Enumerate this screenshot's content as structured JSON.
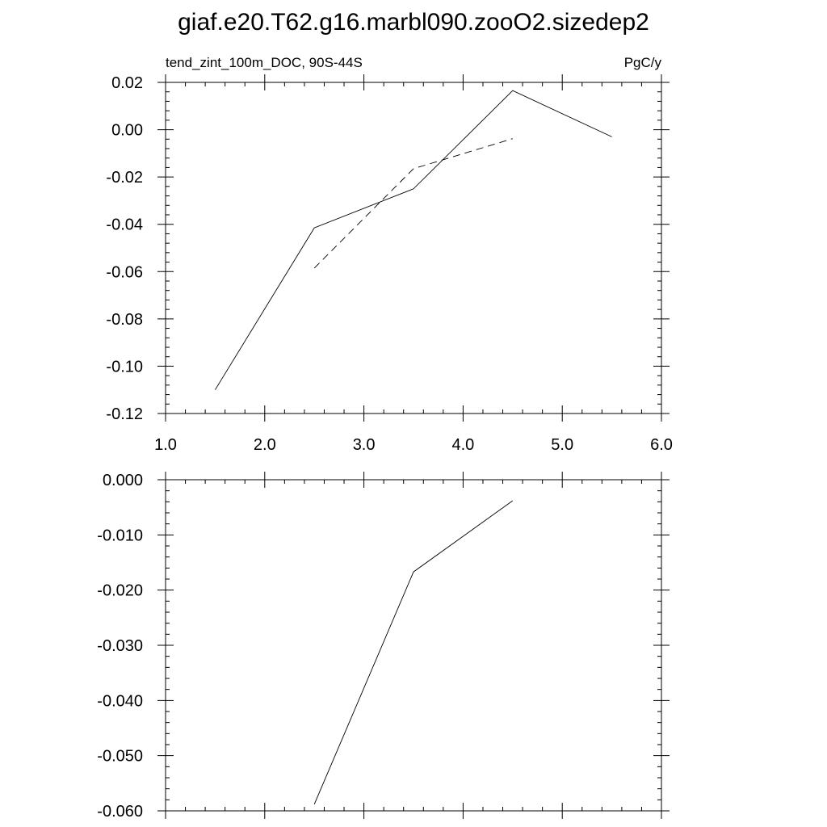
{
  "figure": {
    "title": "giaf.e20.T62.g16.marbl090.zooO2.sizedep2"
  },
  "chart_data": [
    {
      "type": "line",
      "panel": "top",
      "left_label": "tend_zint_100m_DOC, 90S-44S",
      "right_label": "PgC/y",
      "xlim": [
        1.0,
        6.0
      ],
      "ylim": [
        -0.12,
        0.02
      ],
      "x_major_ticks": [
        1.0,
        2.0,
        3.0,
        4.0,
        5.0,
        6.0
      ],
      "x_tick_labels": [
        "1.0",
        "2.0",
        "3.0",
        "4.0",
        "5.0",
        "6.0"
      ],
      "x_minor_step": 0.2,
      "y_major_ticks": [
        0.02,
        0.0,
        -0.02,
        -0.04,
        -0.06,
        -0.08,
        -0.1,
        -0.12
      ],
      "y_tick_labels": [
        "0.02",
        "0.00",
        "-0.02",
        "-0.04",
        "-0.06",
        "-0.08",
        "-0.10",
        "-0.12"
      ],
      "y_minor_step": 0.004,
      "grid": false,
      "series": [
        {
          "style": "solid",
          "color": "#000000",
          "x": [
            1.5,
            2.5,
            3.5,
            4.5,
            5.5
          ],
          "y": [
            -0.11,
            -0.0415,
            -0.025,
            0.0165,
            -0.003
          ]
        },
        {
          "style": "dashed",
          "color": "#000000",
          "x": [
            2.5,
            3.5,
            4.5
          ],
          "y": [
            -0.0585,
            -0.0165,
            -0.0038
          ]
        }
      ]
    },
    {
      "type": "line",
      "panel": "bottom",
      "xlim": [
        1.0,
        6.0
      ],
      "ylim": [
        -0.06,
        0.0
      ],
      "x_major_ticks": [
        1.0,
        2.0,
        3.0,
        4.0,
        5.0,
        6.0
      ],
      "x_minor_step": 0.2,
      "y_major_ticks": [
        0.0,
        -0.01,
        -0.02,
        -0.03,
        -0.04,
        -0.05,
        -0.06
      ],
      "y_tick_labels": [
        "0.000",
        "-0.010",
        "-0.020",
        "-0.030",
        "-0.040",
        "-0.050",
        "-0.060"
      ],
      "y_minor_step": 0.002,
      "grid": false,
      "series": [
        {
          "style": "solid",
          "color": "#000000",
          "x": [
            2.5,
            3.5,
            4.5
          ],
          "y": [
            -0.0588,
            -0.0167,
            -0.0038
          ]
        }
      ]
    }
  ]
}
